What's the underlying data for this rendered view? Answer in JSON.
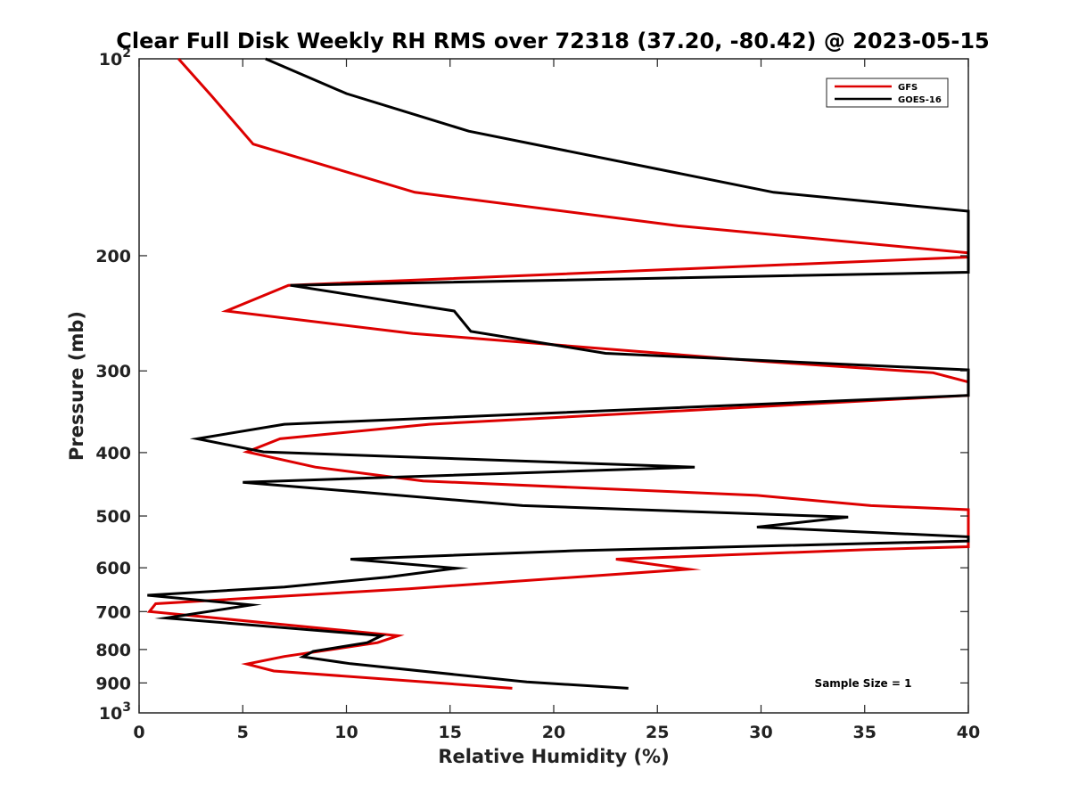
{
  "chart_data": {
    "type": "line",
    "title": "Clear Full Disk Weekly RH RMS over 72318 (37.20, -80.42) @ 2023-05-15",
    "xlabel": "Relative Humidity (%)",
    "ylabel": "Pressure (mb)",
    "xlim": [
      0,
      40
    ],
    "ylim": [
      100,
      1000
    ],
    "yscale": "log",
    "y_reversed": true,
    "grid": false,
    "legend_position": "top-right",
    "x_ticks": [
      "0",
      "5",
      "10",
      "15",
      "20",
      "25",
      "30",
      "35",
      "40"
    ],
    "y_ticks": [
      {
        "value": 100,
        "base": "10",
        "exp": "2"
      },
      {
        "value": 200,
        "label": "200"
      },
      {
        "value": 300,
        "label": "300"
      },
      {
        "value": 400,
        "label": "400"
      },
      {
        "value": 500,
        "label": "500"
      },
      {
        "value": 600,
        "label": "600"
      },
      {
        "value": 700,
        "label": "700"
      },
      {
        "value": 800,
        "label": "800"
      },
      {
        "value": 900,
        "label": "900"
      },
      {
        "value": 1000,
        "base": "10",
        "exp": "3"
      }
    ],
    "annotation": "Sample Size = 1",
    "series": [
      {
        "name": "GFS",
        "color": "#dd0000",
        "points": [
          [
            1.9,
            100
          ],
          [
            3.5,
            114
          ],
          [
            5.5,
            135
          ],
          [
            13.3,
            160
          ],
          [
            26,
            180
          ],
          [
            40,
            198
          ],
          [
            40,
            201
          ],
          [
            7.2,
            222
          ],
          [
            4.2,
            243
          ],
          [
            13.2,
            263
          ],
          [
            30,
            290
          ],
          [
            38.3,
            302
          ],
          [
            40,
            312
          ],
          [
            40,
            327
          ],
          [
            14,
            362
          ],
          [
            6.8,
            381
          ],
          [
            5.2,
            399
          ],
          [
            8.5,
            421
          ],
          [
            13.7,
            442
          ],
          [
            29.8,
            465
          ],
          [
            35.3,
            482
          ],
          [
            40,
            489
          ],
          [
            40,
            557
          ],
          [
            35,
            563
          ],
          [
            23,
            582
          ],
          [
            26.5,
            603
          ],
          [
            13,
            646
          ],
          [
            0.8,
            681
          ],
          [
            0.5,
            700
          ],
          [
            12.5,
            762
          ],
          [
            11.5,
            781
          ],
          [
            7,
            820
          ],
          [
            5.2,
            842
          ],
          [
            6.5,
            863
          ],
          [
            18,
            917
          ]
        ]
      },
      {
        "name": "GOES-16",
        "color": "#000000",
        "points": [
          [
            6.1,
            100
          ],
          [
            10,
            113
          ],
          [
            15.9,
            129
          ],
          [
            30.6,
            160
          ],
          [
            40,
            171
          ],
          [
            40,
            212
          ],
          [
            7.3,
            222
          ],
          [
            15.2,
            243
          ],
          [
            16,
            261
          ],
          [
            22.5,
            282
          ],
          [
            40,
            299
          ],
          [
            40,
            327
          ],
          [
            7,
            362
          ],
          [
            2.8,
            381
          ],
          [
            6,
            399
          ],
          [
            26.8,
            421
          ],
          [
            5,
            444
          ],
          [
            18.5,
            482
          ],
          [
            34.2,
            502
          ],
          [
            29.8,
            520
          ],
          [
            40,
            538
          ],
          [
            40,
            546
          ],
          [
            21,
            565
          ],
          [
            10.2,
            582
          ],
          [
            15.3,
            601
          ],
          [
            12,
            620
          ],
          [
            7,
            642
          ],
          [
            0.4,
            661
          ],
          [
            5.4,
            684
          ],
          [
            1.3,
            716
          ],
          [
            11.7,
            762
          ],
          [
            11,
            781
          ],
          [
            8.4,
            805
          ],
          [
            7.9,
            821
          ],
          [
            10.2,
            841
          ],
          [
            18.7,
            897
          ],
          [
            23.6,
            917
          ]
        ]
      }
    ]
  }
}
